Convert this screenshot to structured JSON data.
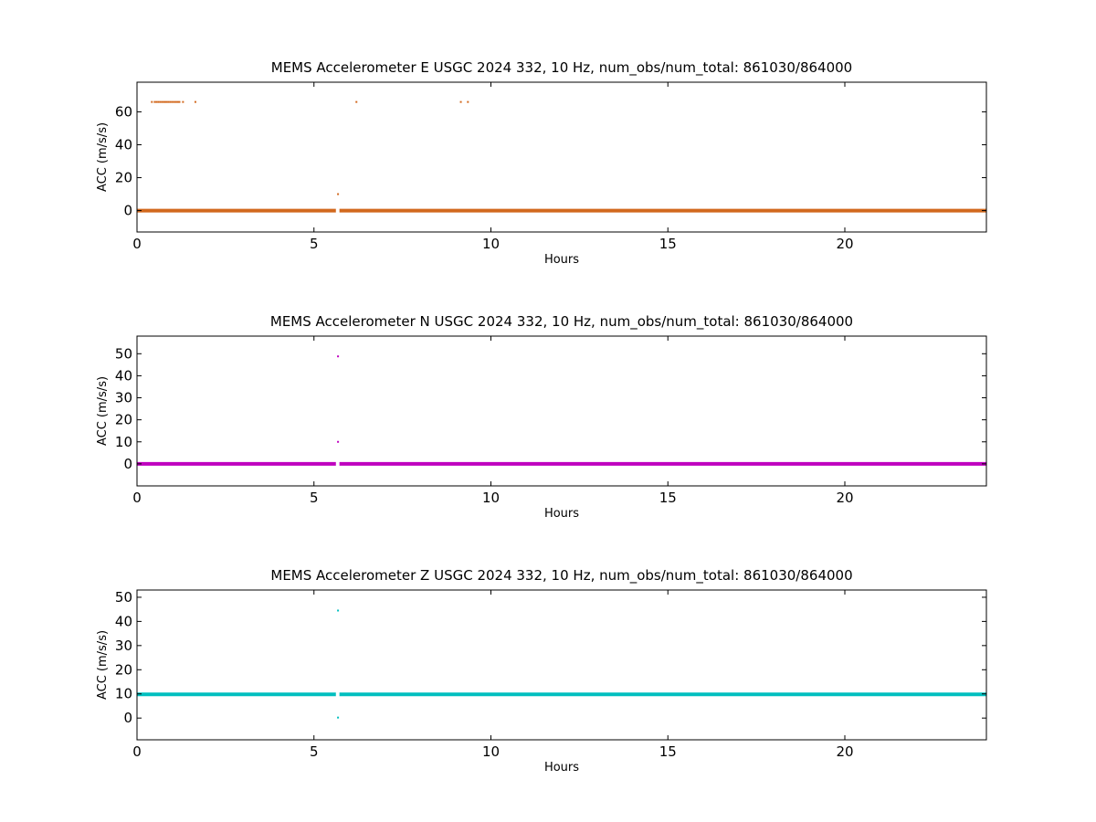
{
  "chart_data": [
    {
      "type": "scatter",
      "title": "MEMS Accelerometer E USGC 2024 332, 10 Hz, num_obs/num_total: 861030/864000",
      "xlabel": "Hours",
      "ylabel": "ACC (m/s/s)",
      "xlim": [
        0,
        24
      ],
      "ylim": [
        -13,
        78
      ],
      "xticks": [
        0,
        5,
        10,
        15,
        20
      ],
      "yticks": [
        0,
        20,
        40,
        60
      ],
      "grid": false,
      "color": "#d2691e",
      "baseline": {
        "y": 0,
        "x_start": 0,
        "x_end": 24,
        "gap": [
          5.62,
          5.72
        ]
      },
      "points": [
        {
          "x": 0.42,
          "y": 66
        },
        {
          "x": 0.5,
          "y": 66
        },
        {
          "x": 0.55,
          "y": 66
        },
        {
          "x": 0.6,
          "y": 66
        },
        {
          "x": 0.65,
          "y": 66
        },
        {
          "x": 0.7,
          "y": 66
        },
        {
          "x": 0.75,
          "y": 66
        },
        {
          "x": 0.8,
          "y": 66
        },
        {
          "x": 0.85,
          "y": 66
        },
        {
          "x": 0.9,
          "y": 66
        },
        {
          "x": 0.95,
          "y": 66
        },
        {
          "x": 1.0,
          "y": 66
        },
        {
          "x": 1.05,
          "y": 66
        },
        {
          "x": 1.1,
          "y": 66
        },
        {
          "x": 1.15,
          "y": 66
        },
        {
          "x": 1.2,
          "y": 66
        },
        {
          "x": 1.3,
          "y": 66
        },
        {
          "x": 1.65,
          "y": 66
        },
        {
          "x": 6.2,
          "y": 66
        },
        {
          "x": 9.15,
          "y": 66
        },
        {
          "x": 9.35,
          "y": 66
        },
        {
          "x": 5.68,
          "y": 10
        }
      ]
    },
    {
      "type": "scatter",
      "title": "MEMS Accelerometer N USGC 2024 332, 10 Hz, num_obs/num_total: 861030/864000",
      "xlabel": "Hours",
      "ylabel": "ACC (m/s/s)",
      "xlim": [
        0,
        24
      ],
      "ylim": [
        -10,
        58
      ],
      "xticks": [
        0,
        5,
        10,
        15,
        20
      ],
      "yticks": [
        0,
        10,
        20,
        30,
        40,
        50
      ],
      "grid": false,
      "color": "#bf00bf",
      "baseline": {
        "y": 0,
        "x_start": 0,
        "x_end": 24,
        "gap": [
          5.62,
          5.72
        ]
      },
      "points": [
        {
          "x": 5.68,
          "y": 48.8
        },
        {
          "x": 5.68,
          "y": 10
        }
      ]
    },
    {
      "type": "scatter",
      "title": "MEMS Accelerometer Z USGC 2024 332, 10 Hz, num_obs/num_total: 861030/864000",
      "xlabel": "Hours",
      "ylabel": "ACC (m/s/s)",
      "xlim": [
        0,
        24
      ],
      "ylim": [
        -9,
        53
      ],
      "xticks": [
        0,
        5,
        10,
        15,
        20
      ],
      "yticks": [
        0,
        10,
        20,
        30,
        40,
        50
      ],
      "grid": false,
      "color": "#00bfbf",
      "baseline": {
        "y": 9.8,
        "x_start": 0,
        "x_end": 24,
        "gap": [
          5.62,
          5.72
        ]
      },
      "points": [
        {
          "x": 5.68,
          "y": 44.5
        },
        {
          "x": 5.68,
          "y": 0.2
        }
      ]
    }
  ]
}
